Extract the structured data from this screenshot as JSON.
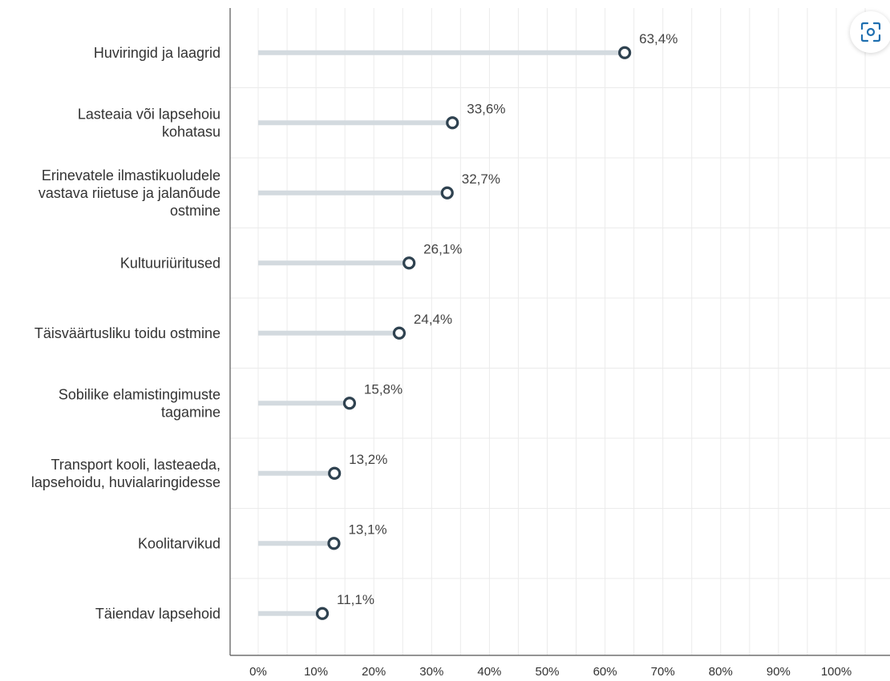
{
  "chart_data": {
    "type": "lollipop",
    "categories": [
      "Huviringid ja laagrid",
      "Lasteaia või lapsehoiu kohatasu",
      "Erinevatele ilmastikuoludele vastava riietuse ja jalanõude ostmine",
      "Kultuuriüritused",
      "Täisväärtusliku toidu ostmine",
      "Sobilike elamistingimuste tagamine",
      "Transport kooli, lasteaeda, lapsehoidu, huvialaringidesse",
      "Koolitarvikud",
      "Täiendav lapsehoid"
    ],
    "category_lines": [
      [
        "Huviringid ja laagrid"
      ],
      [
        "Lasteaia või lapsehoiu",
        "kohatasu"
      ],
      [
        "Erinevatele ilmastikuoludele",
        "vastava riietuse ja jalanõude",
        "ostmine"
      ],
      [
        "Kultuuriüritused"
      ],
      [
        "Täisväärtusliku toidu ostmine"
      ],
      [
        "Sobilike elamistingimuste",
        "tagamine"
      ],
      [
        "Transport kooli, lasteaeda,",
        "lapsehoidu, huvialaringidesse"
      ],
      [
        "Koolitarvikud"
      ],
      [
        "Täiendav lapsehoid"
      ]
    ],
    "values": [
      63.4,
      33.6,
      32.7,
      26.1,
      24.4,
      15.8,
      13.2,
      13.1,
      11.1
    ],
    "data_labels": [
      "63,4%",
      "33,6%",
      "32,7%",
      "26,1%",
      "24,4%",
      "15,8%",
      "13,2%",
      "13,1%",
      "11,1%"
    ],
    "x_ticks": [
      "0%",
      "10%",
      "20%",
      "30%",
      "40%",
      "50%",
      "60%",
      "70%",
      "80%",
      "90%",
      "100%"
    ],
    "xlim": [
      0,
      100
    ],
    "grid": true,
    "colors": {
      "stem": "#d3dadf",
      "marker": "#2f4250",
      "grid": "#ebebeb",
      "axis": "#555555"
    }
  },
  "toolbar": {
    "zoom_icon": "focus-icon"
  }
}
